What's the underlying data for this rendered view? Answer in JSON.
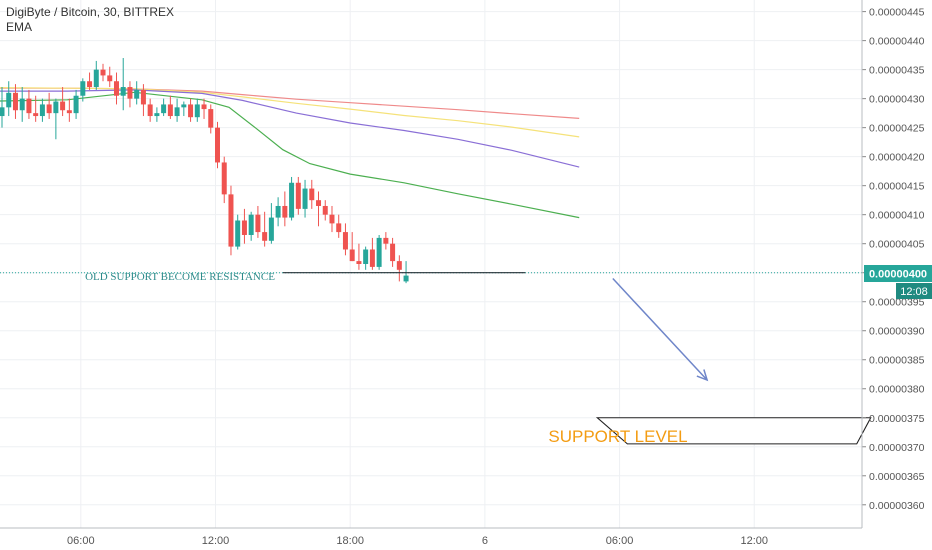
{
  "header": {
    "symbol_line": "DigiByte / Bitcoin, 30, BITTREX",
    "indicator": "EMA"
  },
  "colors": {
    "up": "#26a69a",
    "down": "#ef5350",
    "grid": "#eef0f3",
    "axis_text": "#555555",
    "price_tag_bg": "#26a69a",
    "time_tag_bg": "#1f8a80",
    "ema": [
      "#ef8a8a",
      "#f5e27a",
      "#8a6fd6",
      "#4caf50"
    ],
    "arrow": "#6f86c9",
    "support_text": "#f39c12"
  },
  "chart_data": {
    "type": "candlestick",
    "title": "DigiByte / Bitcoin, 30, BITTREX",
    "ylim": [
      3.56e-06,
      4.47e-06
    ],
    "y_ticks": [
      3.6e-06,
      3.65e-06,
      3.7e-06,
      3.75e-06,
      3.8e-06,
      3.85e-06,
      3.9e-06,
      3.95e-06,
      4e-06,
      4.05e-06,
      4.1e-06,
      4.15e-06,
      4.2e-06,
      4.25e-06,
      4.3e-06,
      4.35e-06,
      4.4e-06,
      4.45e-06
    ],
    "y_tick_labels": [
      "0.00000360",
      "0.00000365",
      "0.00000370",
      "0.00000375",
      "0.00000380",
      "0.00000385",
      "0.00000390",
      "0.00000395",
      "0.00000400",
      "0.00000405",
      "0.00000410",
      "0.00000415",
      "0.00000420",
      "0.00000425",
      "0.00000430",
      "0.00000435",
      "0.00000440",
      "0.00000445"
    ],
    "x_range": [
      0,
      128
    ],
    "x_ticks": [
      12,
      32,
      52,
      72,
      92,
      112
    ],
    "x_tick_labels": [
      "06:00",
      "12:00",
      "18:00",
      "6",
      "06:00",
      "12:00"
    ],
    "candles": [
      {
        "o": 4.27,
        "h": 4.32,
        "l": 4.25,
        "c": 4.285
      },
      {
        "o": 4.285,
        "h": 4.33,
        "l": 4.27,
        "c": 4.31
      },
      {
        "o": 4.31,
        "h": 4.325,
        "l": 4.265,
        "c": 4.28
      },
      {
        "o": 4.28,
        "h": 4.32,
        "l": 4.26,
        "c": 4.3
      },
      {
        "o": 4.3,
        "h": 4.315,
        "l": 4.265,
        "c": 4.275
      },
      {
        "o": 4.275,
        "h": 4.305,
        "l": 4.26,
        "c": 4.27
      },
      {
        "o": 4.27,
        "h": 4.3,
        "l": 4.26,
        "c": 4.29
      },
      {
        "o": 4.29,
        "h": 4.31,
        "l": 4.265,
        "c": 4.275
      },
      {
        "o": 4.275,
        "h": 4.3,
        "l": 4.23,
        "c": 4.295
      },
      {
        "o": 4.295,
        "h": 4.32,
        "l": 4.27,
        "c": 4.28
      },
      {
        "o": 4.28,
        "h": 4.3,
        "l": 4.26,
        "c": 4.275
      },
      {
        "o": 4.275,
        "h": 4.315,
        "l": 4.265,
        "c": 4.305
      },
      {
        "o": 4.305,
        "h": 4.335,
        "l": 4.295,
        "c": 4.33
      },
      {
        "o": 4.33,
        "h": 4.345,
        "l": 4.315,
        "c": 4.32
      },
      {
        "o": 4.32,
        "h": 4.365,
        "l": 4.315,
        "c": 4.35
      },
      {
        "o": 4.35,
        "h": 4.36,
        "l": 4.33,
        "c": 4.34
      },
      {
        "o": 4.34,
        "h": 4.355,
        "l": 4.32,
        "c": 4.33
      },
      {
        "o": 4.33,
        "h": 4.345,
        "l": 4.29,
        "c": 4.305
      },
      {
        "o": 4.305,
        "h": 4.37,
        "l": 4.28,
        "c": 4.32
      },
      {
        "o": 4.32,
        "h": 4.33,
        "l": 4.285,
        "c": 4.3
      },
      {
        "o": 4.3,
        "h": 4.33,
        "l": 4.29,
        "c": 4.315
      },
      {
        "o": 4.315,
        "h": 4.325,
        "l": 4.27,
        "c": 4.29
      },
      {
        "o": 4.29,
        "h": 4.3,
        "l": 4.26,
        "c": 4.27
      },
      {
        "o": 4.27,
        "h": 4.285,
        "l": 4.26,
        "c": 4.275
      },
      {
        "o": 4.275,
        "h": 4.3,
        "l": 4.27,
        "c": 4.29
      },
      {
        "o": 4.29,
        "h": 4.305,
        "l": 4.265,
        "c": 4.27
      },
      {
        "o": 4.27,
        "h": 4.3,
        "l": 4.26,
        "c": 4.285
      },
      {
        "o": 4.285,
        "h": 4.295,
        "l": 4.27,
        "c": 4.29
      },
      {
        "o": 4.29,
        "h": 4.3,
        "l": 4.26,
        "c": 4.268
      },
      {
        "o": 4.268,
        "h": 4.3,
        "l": 4.26,
        "c": 4.29
      },
      {
        "o": 4.29,
        "h": 4.3,
        "l": 4.265,
        "c": 4.282
      },
      {
        "o": 4.282,
        "h": 4.29,
        "l": 4.24,
        "c": 4.25
      },
      {
        "o": 4.25,
        "h": 4.26,
        "l": 4.18,
        "c": 4.19
      },
      {
        "o": 4.19,
        "h": 4.2,
        "l": 4.12,
        "c": 4.135
      },
      {
        "o": 4.135,
        "h": 4.15,
        "l": 4.03,
        "c": 4.045
      },
      {
        "o": 4.045,
        "h": 4.1,
        "l": 4.04,
        "c": 4.09
      },
      {
        "o": 4.09,
        "h": 4.11,
        "l": 4.05,
        "c": 4.065
      },
      {
        "o": 4.065,
        "h": 4.105,
        "l": 4.055,
        "c": 4.1
      },
      {
        "o": 4.1,
        "h": 4.115,
        "l": 4.06,
        "c": 4.07
      },
      {
        "o": 4.07,
        "h": 4.105,
        "l": 4.045,
        "c": 4.055
      },
      {
        "o": 4.055,
        "h": 4.12,
        "l": 4.05,
        "c": 4.095
      },
      {
        "o": 4.095,
        "h": 4.13,
        "l": 4.08,
        "c": 4.115
      },
      {
        "o": 4.115,
        "h": 4.14,
        "l": 4.08,
        "c": 4.095
      },
      {
        "o": 4.095,
        "h": 4.165,
        "l": 4.09,
        "c": 4.155
      },
      {
        "o": 4.155,
        "h": 4.165,
        "l": 4.1,
        "c": 4.11
      },
      {
        "o": 4.11,
        "h": 4.16,
        "l": 4.095,
        "c": 4.145
      },
      {
        "o": 4.145,
        "h": 4.16,
        "l": 4.11,
        "c": 4.125
      },
      {
        "o": 4.125,
        "h": 4.14,
        "l": 4.08,
        "c": 4.115
      },
      {
        "o": 4.115,
        "h": 4.125,
        "l": 4.09,
        "c": 4.1
      },
      {
        "o": 4.1,
        "h": 4.115,
        "l": 4.07,
        "c": 4.085
      },
      {
        "o": 4.085,
        "h": 4.1,
        "l": 4.06,
        "c": 4.07
      },
      {
        "o": 4.07,
        "h": 4.085,
        "l": 4.03,
        "c": 4.04
      },
      {
        "o": 4.04,
        "h": 4.07,
        "l": 4.02,
        "c": 4.02
      },
      {
        "o": 4.02,
        "h": 4.05,
        "l": 4.005,
        "c": 4.015
      },
      {
        "o": 4.015,
        "h": 4.045,
        "l": 4.005,
        "c": 4.04
      },
      {
        "o": 4.04,
        "h": 4.06,
        "l": 4.005,
        "c": 4.01
      },
      {
        "o": 4.01,
        "h": 4.065,
        "l": 4.005,
        "c": 4.06
      },
      {
        "o": 4.06,
        "h": 4.07,
        "l": 4.04,
        "c": 4.05
      },
      {
        "o": 4.05,
        "h": 4.06,
        "l": 4.01,
        "c": 4.02
      },
      {
        "o": 4.02,
        "h": 4.03,
        "l": 3.985,
        "c": 4.005
      },
      {
        "o": 3.985,
        "h": 4.02,
        "l": 3.982,
        "c": 3.995
      }
    ],
    "ema_series": [
      {
        "color": "#ef8a8a",
        "x": [
          0,
          10,
          20,
          30,
          36,
          44,
          52,
          60,
          68,
          76,
          86
        ],
        "y": [
          4.318,
          4.318,
          4.317,
          4.313,
          4.307,
          4.299,
          4.293,
          4.287,
          4.281,
          4.274,
          4.266
        ]
      },
      {
        "color": "#f5e27a",
        "x": [
          0,
          10,
          20,
          30,
          36,
          44,
          52,
          60,
          68,
          76,
          86
        ],
        "y": [
          4.319,
          4.318,
          4.317,
          4.311,
          4.303,
          4.292,
          4.282,
          4.271,
          4.262,
          4.251,
          4.234
        ]
      },
      {
        "color": "#8a6fd6",
        "x": [
          0,
          10,
          20,
          30,
          36,
          44,
          52,
          60,
          68,
          76,
          86
        ],
        "y": [
          4.313,
          4.313,
          4.315,
          4.309,
          4.297,
          4.275,
          4.258,
          4.245,
          4.23,
          4.211,
          4.182
        ]
      },
      {
        "color": "#4caf50",
        "x": [
          0,
          10,
          20,
          30,
          34,
          38,
          42,
          46,
          52,
          60,
          68,
          76,
          86
        ],
        "y": [
          4.296,
          4.298,
          4.311,
          4.298,
          4.285,
          4.249,
          4.212,
          4.188,
          4.17,
          4.155,
          4.136,
          4.118,
          4.095
        ]
      }
    ],
    "support_resistance_line": {
      "x": [
        0,
        92
      ],
      "y": 4.0
    },
    "annotations": {
      "resistance_label": "OLD SUPPORT BECOME RESISTANCE",
      "support_label": "SUPPORT LEVEL"
    },
    "projection_arrow": {
      "from": {
        "x": 91,
        "y": 3.99
      },
      "to": {
        "x": 105,
        "y": 3.815
      }
    },
    "support_box": {
      "x_left": 89,
      "x_right": 129,
      "y_top": 3.75,
      "y_bottom": 3.705
    },
    "current_price_label": "0.00000400",
    "current_time_label": "12:08",
    "grid": true
  }
}
